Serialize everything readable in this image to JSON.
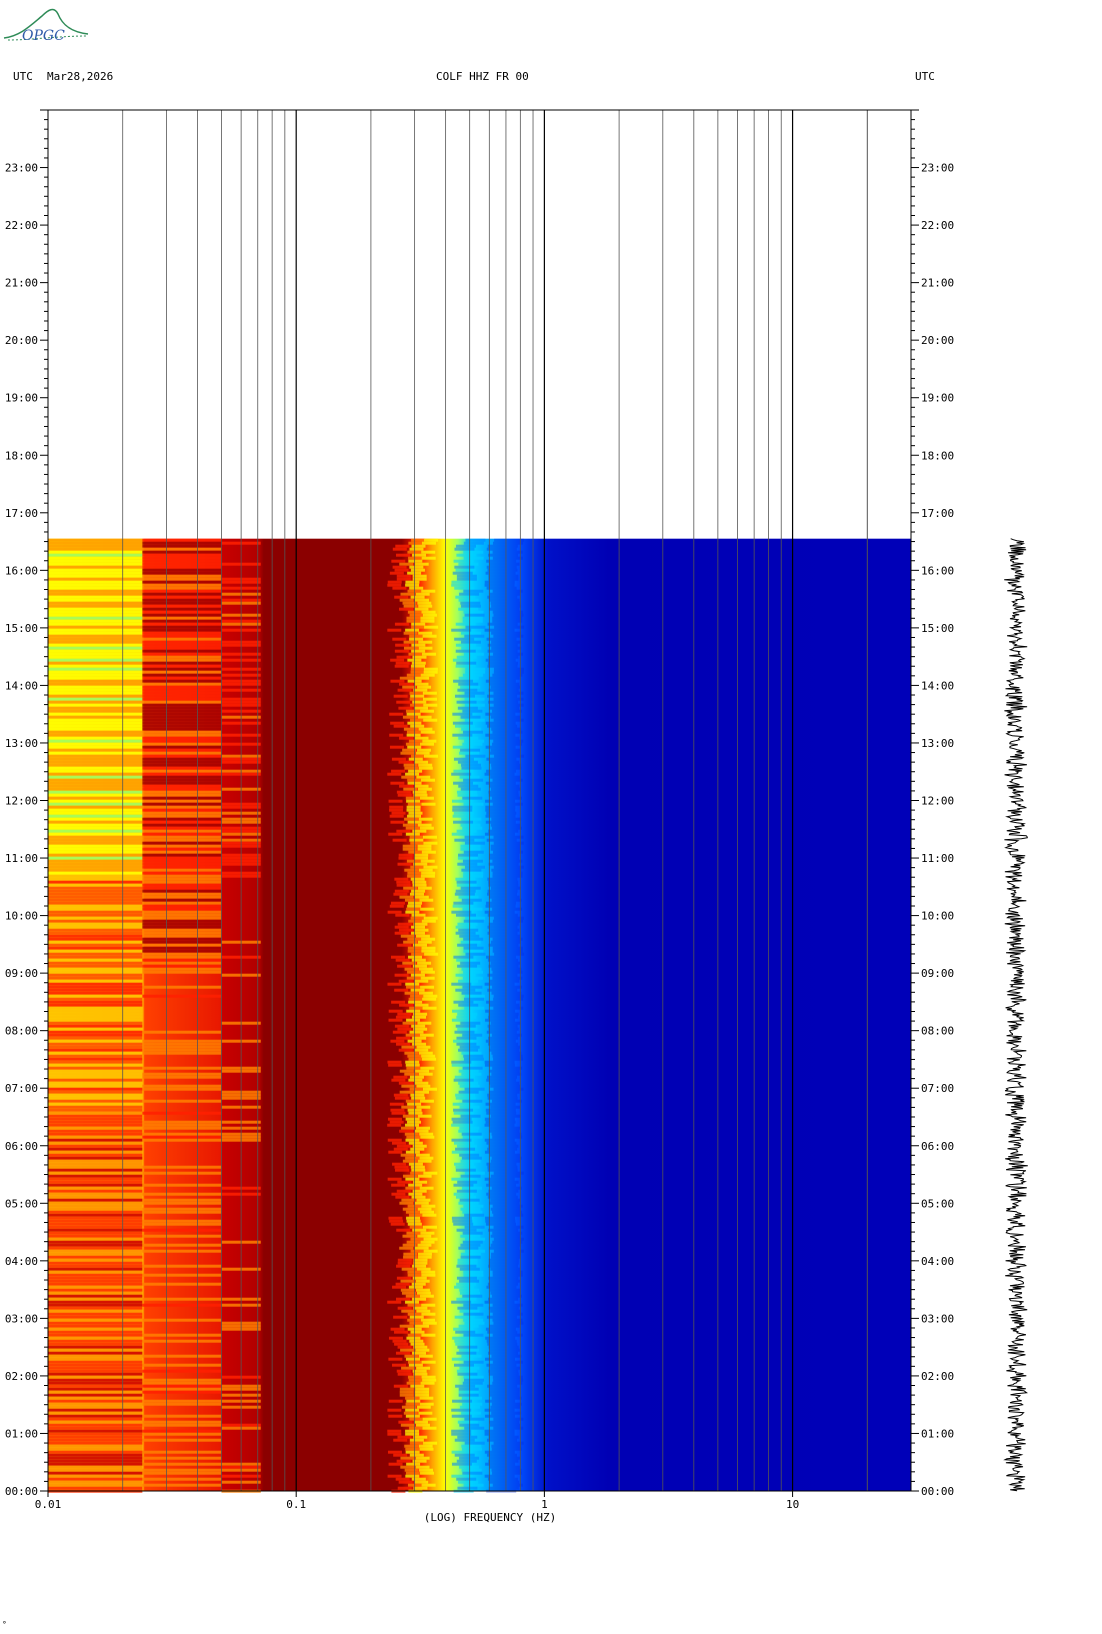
{
  "header": {
    "left_utc": "UTC",
    "date": "Mar28,2026",
    "station": "COLF HHZ FR 00",
    "right_utc": "UTC"
  },
  "logo": {
    "text": "OPGC",
    "color": "#2e8b57"
  },
  "corner_mark": "°",
  "chart_data": {
    "type": "heatmap",
    "title": "COLF HHZ FR 00",
    "xlabel": "(LOG) FREQUENCY (HZ)",
    "ylabel": "",
    "x_scale": "log",
    "xlim": [
      0.01,
      30
    ],
    "ylim_hours": [
      0,
      24
    ],
    "x_tick_labels": [
      {
        "value": 0.01,
        "label": "0.01"
      },
      {
        "value": 0.1,
        "label": "0.1"
      },
      {
        "value": 1,
        "label": "1"
      },
      {
        "value": 10,
        "label": "10"
      }
    ],
    "y_tick_labels": [
      "00:00",
      "01:00",
      "02:00",
      "03:00",
      "04:00",
      "05:00",
      "06:00",
      "07:00",
      "08:00",
      "09:00",
      "10:00",
      "11:00",
      "12:00",
      "13:00",
      "14:00",
      "15:00",
      "16:00",
      "17:00",
      "18:00",
      "19:00",
      "20:00",
      "21:00",
      "22:00",
      "23:00"
    ],
    "data_end_hour": 16.55,
    "grid": true,
    "colormap": [
      "#0000b4",
      "#0050ff",
      "#00d2ff",
      "#a0ff60",
      "#ffff00",
      "#ffa000",
      "#ff2000",
      "#8b0000"
    ],
    "frequency_bands": [
      {
        "from": 0.01,
        "to": 0.024,
        "level": "yellow-orange"
      },
      {
        "from": 0.024,
        "to": 0.05,
        "level": "orange-red"
      },
      {
        "from": 0.05,
        "to": 0.072,
        "level": "red"
      },
      {
        "from": 0.072,
        "to": 0.26,
        "level": "dark-red"
      },
      {
        "from": 0.26,
        "to": 0.6,
        "level": "transition"
      },
      {
        "from": 0.6,
        "to": 30,
        "level": "blue"
      }
    ],
    "trace_color": "#000000"
  }
}
